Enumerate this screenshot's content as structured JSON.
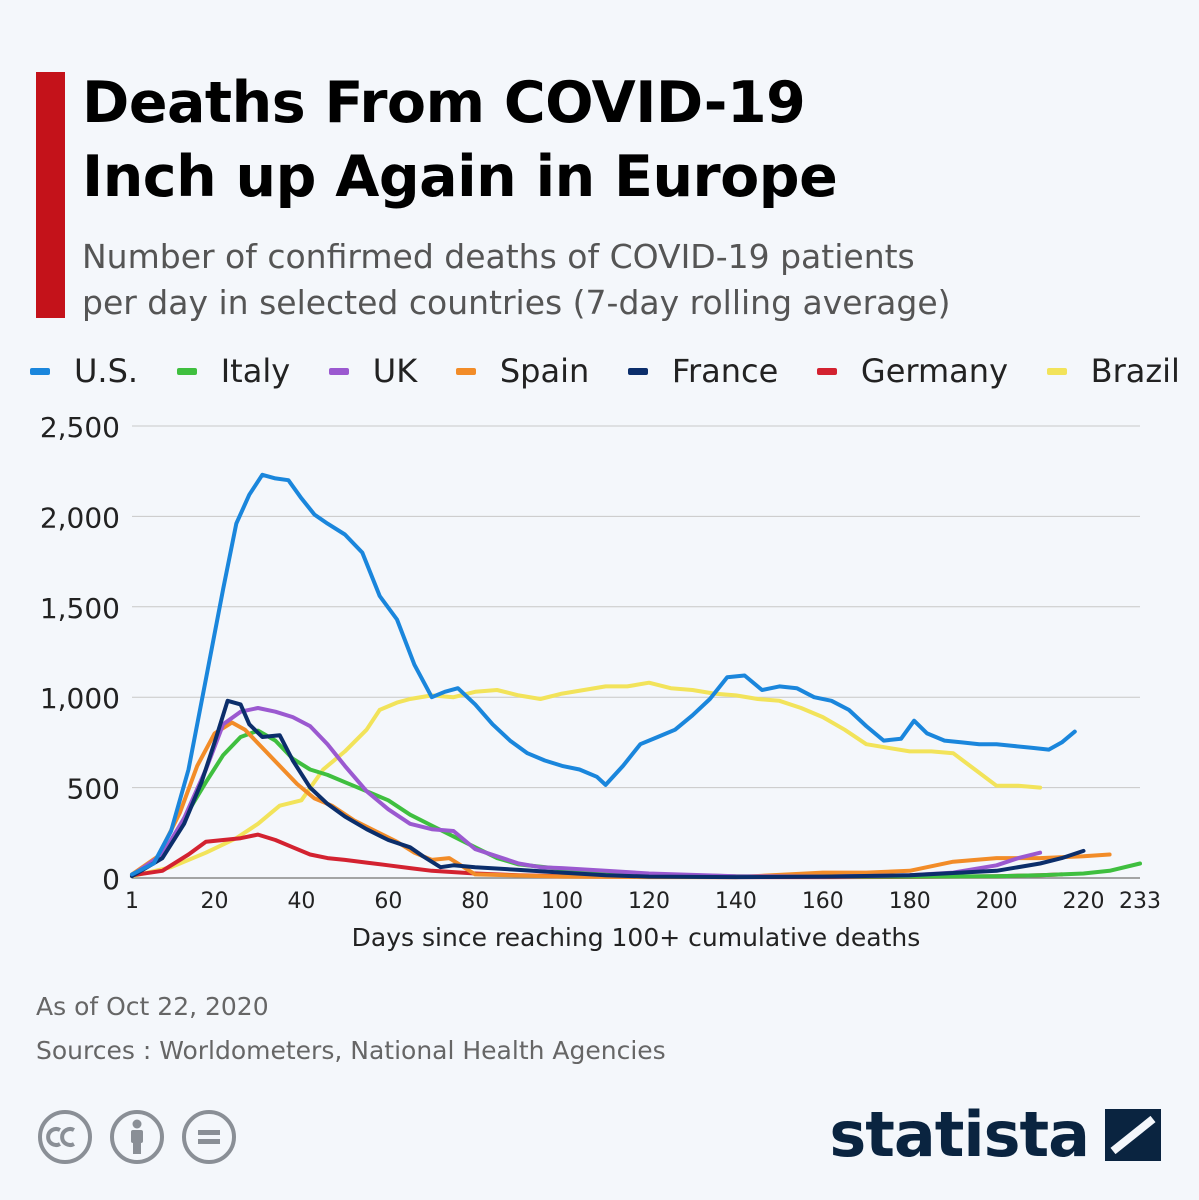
{
  "header": {
    "title_line1": "Deaths From COVID-19",
    "title_line2": "Inch up Again in Europe",
    "subtitle_line1": "Number of confirmed deaths of COVID-19 patients",
    "subtitle_line2": "per day in selected countries (7-day rolling average)"
  },
  "colors": {
    "accent": "#c4121a",
    "background": "#f4f7fb",
    "grid": "#c8c8c8"
  },
  "footer": {
    "as_of": "As of Oct 22, 2020",
    "sources": "Sources : Worldometers, National Health Agencies",
    "brand": "statista"
  },
  "icons": [
    "cc-icon",
    "by-icon",
    "nd-icon",
    "statista-logo-icon"
  ],
  "chart_data": {
    "type": "line",
    "title": "Deaths From COVID-19 Inch up Again in Europe",
    "xlabel": "Days since reaching 100+ cumulative deaths",
    "ylabel": "",
    "xlim": [
      1,
      233
    ],
    "ylim": [
      0,
      2500
    ],
    "grid": true,
    "legend": "top",
    "x_ticks": [
      1,
      20,
      40,
      60,
      80,
      100,
      120,
      140,
      160,
      180,
      200,
      220,
      233
    ],
    "y_ticks": [
      0,
      500,
      1000,
      1500,
      2000,
      2500
    ],
    "y_tick_labels": [
      "0",
      "500",
      "1,000",
      "1,500",
      "2,000",
      "2,500"
    ],
    "series": [
      {
        "name": "Brazil",
        "color": "#f2e35a",
        "points": [
          [
            1,
            10
          ],
          [
            10,
            60
          ],
          [
            18,
            140
          ],
          [
            25,
            220
          ],
          [
            30,
            300
          ],
          [
            35,
            400
          ],
          [
            40,
            430
          ],
          [
            45,
            600
          ],
          [
            50,
            700
          ],
          [
            55,
            820
          ],
          [
            58,
            930
          ],
          [
            62,
            970
          ],
          [
            65,
            990
          ],
          [
            70,
            1010
          ],
          [
            75,
            1000
          ],
          [
            80,
            1030
          ],
          [
            85,
            1040
          ],
          [
            90,
            1010
          ],
          [
            95,
            990
          ],
          [
            100,
            1020
          ],
          [
            105,
            1040
          ],
          [
            110,
            1060
          ],
          [
            115,
            1060
          ],
          [
            120,
            1080
          ],
          [
            125,
            1050
          ],
          [
            130,
            1040
          ],
          [
            135,
            1020
          ],
          [
            140,
            1010
          ],
          [
            145,
            990
          ],
          [
            150,
            980
          ],
          [
            155,
            940
          ],
          [
            160,
            890
          ],
          [
            165,
            820
          ],
          [
            170,
            740
          ],
          [
            175,
            720
          ],
          [
            180,
            700
          ],
          [
            185,
            700
          ],
          [
            190,
            690
          ],
          [
            195,
            600
          ],
          [
            200,
            510
          ],
          [
            205,
            510
          ],
          [
            210,
            500
          ]
        ]
      },
      {
        "name": "Germany",
        "color": "#d32230",
        "points": [
          [
            1,
            15
          ],
          [
            8,
            40
          ],
          [
            14,
            130
          ],
          [
            18,
            200
          ],
          [
            22,
            210
          ],
          [
            26,
            220
          ],
          [
            30,
            240
          ],
          [
            34,
            210
          ],
          [
            38,
            170
          ],
          [
            42,
            130
          ],
          [
            46,
            110
          ],
          [
            50,
            100
          ],
          [
            55,
            85
          ],
          [
            60,
            70
          ],
          [
            65,
            55
          ],
          [
            70,
            40
          ],
          [
            80,
            25
          ],
          [
            90,
            15
          ],
          [
            100,
            10
          ],
          [
            120,
            6
          ],
          [
            140,
            5
          ],
          [
            160,
            5
          ],
          [
            180,
            6
          ],
          [
            200,
            10
          ],
          [
            210,
            15
          ],
          [
            215,
            20
          ]
        ]
      },
      {
        "name": "Italy",
        "color": "#3fbf3f",
        "points": [
          [
            1,
            15
          ],
          [
            8,
            120
          ],
          [
            13,
            330
          ],
          [
            18,
            530
          ],
          [
            22,
            680
          ],
          [
            26,
            780
          ],
          [
            30,
            815
          ],
          [
            34,
            760
          ],
          [
            38,
            660
          ],
          [
            42,
            600
          ],
          [
            46,
            570
          ],
          [
            50,
            530
          ],
          [
            55,
            480
          ],
          [
            60,
            430
          ],
          [
            65,
            350
          ],
          [
            70,
            290
          ],
          [
            75,
            230
          ],
          [
            80,
            170
          ],
          [
            85,
            110
          ],
          [
            90,
            75
          ],
          [
            100,
            50
          ],
          [
            110,
            35
          ],
          [
            120,
            20
          ],
          [
            140,
            10
          ],
          [
            160,
            8
          ],
          [
            180,
            8
          ],
          [
            200,
            10
          ],
          [
            210,
            15
          ],
          [
            220,
            25
          ],
          [
            226,
            40
          ],
          [
            233,
            80
          ]
        ]
      },
      {
        "name": "Spain",
        "color": "#f28c28",
        "points": [
          [
            1,
            20
          ],
          [
            7,
            120
          ],
          [
            12,
            360
          ],
          [
            16,
            620
          ],
          [
            20,
            800
          ],
          [
            24,
            860
          ],
          [
            27,
            820
          ],
          [
            31,
            720
          ],
          [
            35,
            620
          ],
          [
            39,
            520
          ],
          [
            43,
            440
          ],
          [
            47,
            400
          ],
          [
            52,
            320
          ],
          [
            57,
            260
          ],
          [
            62,
            200
          ],
          [
            66,
            140
          ],
          [
            70,
            100
          ],
          [
            74,
            110
          ],
          [
            77,
            65
          ],
          [
            80,
            20
          ],
          [
            100,
            8
          ],
          [
            120,
            5
          ],
          [
            140,
            5
          ],
          [
            160,
            30
          ],
          [
            170,
            30
          ],
          [
            180,
            40
          ],
          [
            190,
            90
          ],
          [
            200,
            110
          ],
          [
            210,
            110
          ],
          [
            220,
            120
          ],
          [
            226,
            130
          ]
        ]
      },
      {
        "name": "UK",
        "color": "#9b59d0",
        "points": [
          [
            1,
            15
          ],
          [
            8,
            130
          ],
          [
            13,
            330
          ],
          [
            18,
            600
          ],
          [
            22,
            850
          ],
          [
            26,
            920
          ],
          [
            30,
            940
          ],
          [
            34,
            920
          ],
          [
            38,
            890
          ],
          [
            42,
            840
          ],
          [
            46,
            740
          ],
          [
            50,
            620
          ],
          [
            55,
            480
          ],
          [
            60,
            380
          ],
          [
            65,
            300
          ],
          [
            70,
            270
          ],
          [
            75,
            260
          ],
          [
            80,
            160
          ],
          [
            85,
            120
          ],
          [
            90,
            80
          ],
          [
            95,
            60
          ],
          [
            100,
            55
          ],
          [
            110,
            40
          ],
          [
            120,
            25
          ],
          [
            140,
            10
          ],
          [
            160,
            8
          ],
          [
            180,
            15
          ],
          [
            190,
            30
          ],
          [
            200,
            70
          ],
          [
            205,
            110
          ],
          [
            210,
            140
          ]
        ]
      },
      {
        "name": "France",
        "color": "#0b2e6b",
        "points": [
          [
            1,
            10
          ],
          [
            8,
            110
          ],
          [
            13,
            300
          ],
          [
            17,
            530
          ],
          [
            20,
            750
          ],
          [
            23,
            980
          ],
          [
            26,
            960
          ],
          [
            28,
            850
          ],
          [
            31,
            780
          ],
          [
            35,
            790
          ],
          [
            38,
            650
          ],
          [
            42,
            500
          ],
          [
            46,
            410
          ],
          [
            50,
            340
          ],
          [
            55,
            270
          ],
          [
            60,
            210
          ],
          [
            65,
            170
          ],
          [
            68,
            120
          ],
          [
            72,
            60
          ],
          [
            75,
            70
          ],
          [
            80,
            60
          ],
          [
            90,
            45
          ],
          [
            100,
            30
          ],
          [
            110,
            15
          ],
          [
            120,
            8
          ],
          [
            140,
            5
          ],
          [
            160,
            8
          ],
          [
            180,
            15
          ],
          [
            200,
            40
          ],
          [
            210,
            80
          ],
          [
            215,
            110
          ],
          [
            220,
            150
          ]
        ]
      },
      {
        "name": "U.S.",
        "color": "#1a86dc",
        "points": [
          [
            1,
            20
          ],
          [
            6,
            80
          ],
          [
            10,
            260
          ],
          [
            14,
            600
          ],
          [
            18,
            1100
          ],
          [
            22,
            1600
          ],
          [
            25,
            1960
          ],
          [
            28,
            2120
          ],
          [
            31,
            2230
          ],
          [
            34,
            2210
          ],
          [
            37,
            2200
          ],
          [
            40,
            2100
          ],
          [
            43,
            2010
          ],
          [
            46,
            1960
          ],
          [
            50,
            1900
          ],
          [
            54,
            1800
          ],
          [
            58,
            1560
          ],
          [
            62,
            1430
          ],
          [
            66,
            1180
          ],
          [
            70,
            1000
          ],
          [
            73,
            1030
          ],
          [
            76,
            1050
          ],
          [
            80,
            960
          ],
          [
            84,
            850
          ],
          [
            88,
            760
          ],
          [
            92,
            690
          ],
          [
            96,
            650
          ],
          [
            100,
            620
          ],
          [
            104,
            600
          ],
          [
            108,
            560
          ],
          [
            110,
            515
          ],
          [
            114,
            620
          ],
          [
            118,
            740
          ],
          [
            122,
            780
          ],
          [
            126,
            820
          ],
          [
            130,
            900
          ],
          [
            134,
            990
          ],
          [
            138,
            1110
          ],
          [
            142,
            1120
          ],
          [
            146,
            1040
          ],
          [
            150,
            1060
          ],
          [
            154,
            1050
          ],
          [
            158,
            1000
          ],
          [
            162,
            980
          ],
          [
            166,
            930
          ],
          [
            170,
            840
          ],
          [
            174,
            760
          ],
          [
            178,
            770
          ],
          [
            181,
            870
          ],
          [
            184,
            800
          ],
          [
            188,
            760
          ],
          [
            192,
            750
          ],
          [
            196,
            740
          ],
          [
            200,
            740
          ],
          [
            204,
            730
          ],
          [
            208,
            720
          ],
          [
            212,
            710
          ],
          [
            215,
            750
          ],
          [
            218,
            810
          ]
        ]
      }
    ]
  }
}
